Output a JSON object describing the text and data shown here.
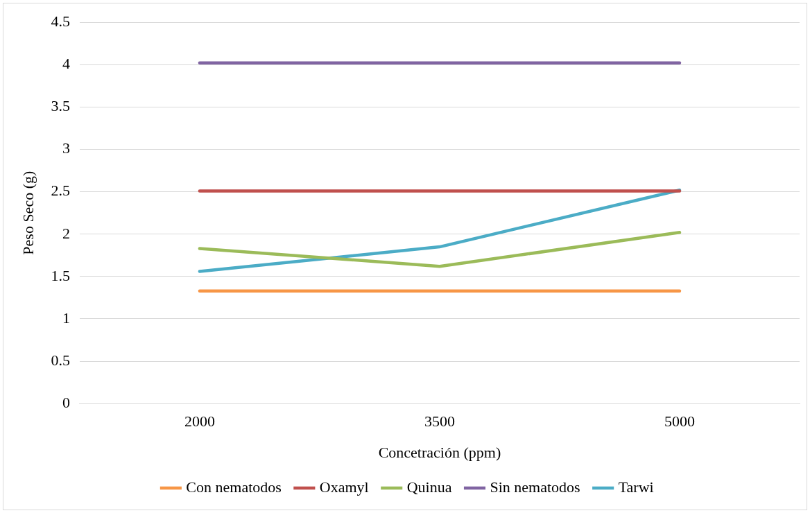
{
  "chart_data": {
    "type": "line",
    "xlabel": "Concetración (ppm)",
    "ylabel": "Peso Seco (g)",
    "categories": [
      "2000",
      "3500",
      "5000"
    ],
    "ylim": [
      0,
      4.5
    ],
    "yticks": [
      0,
      0.5,
      1,
      1.5,
      2,
      2.5,
      3,
      3.5,
      4,
      4.5
    ],
    "grid": "y",
    "legend": "bottom",
    "marker": "none",
    "line_style": "solid",
    "series": [
      {
        "name": "Con nematodos",
        "color": "#f79646",
        "values": [
          1.33,
          1.33,
          1.33
        ]
      },
      {
        "name": "Oxamyl",
        "color": "#c0504d",
        "values": [
          2.51,
          2.51,
          2.51
        ]
      },
      {
        "name": "Quinua",
        "color": "#9bbb59",
        "values": [
          1.83,
          1.62,
          2.02
        ]
      },
      {
        "name": "Sin nematodos",
        "color": "#8064a2",
        "values": [
          4.02,
          4.02,
          4.02
        ]
      },
      {
        "name": "Tarwi",
        "color": "#4bacc6",
        "values": [
          1.56,
          1.85,
          2.52
        ]
      }
    ]
  }
}
